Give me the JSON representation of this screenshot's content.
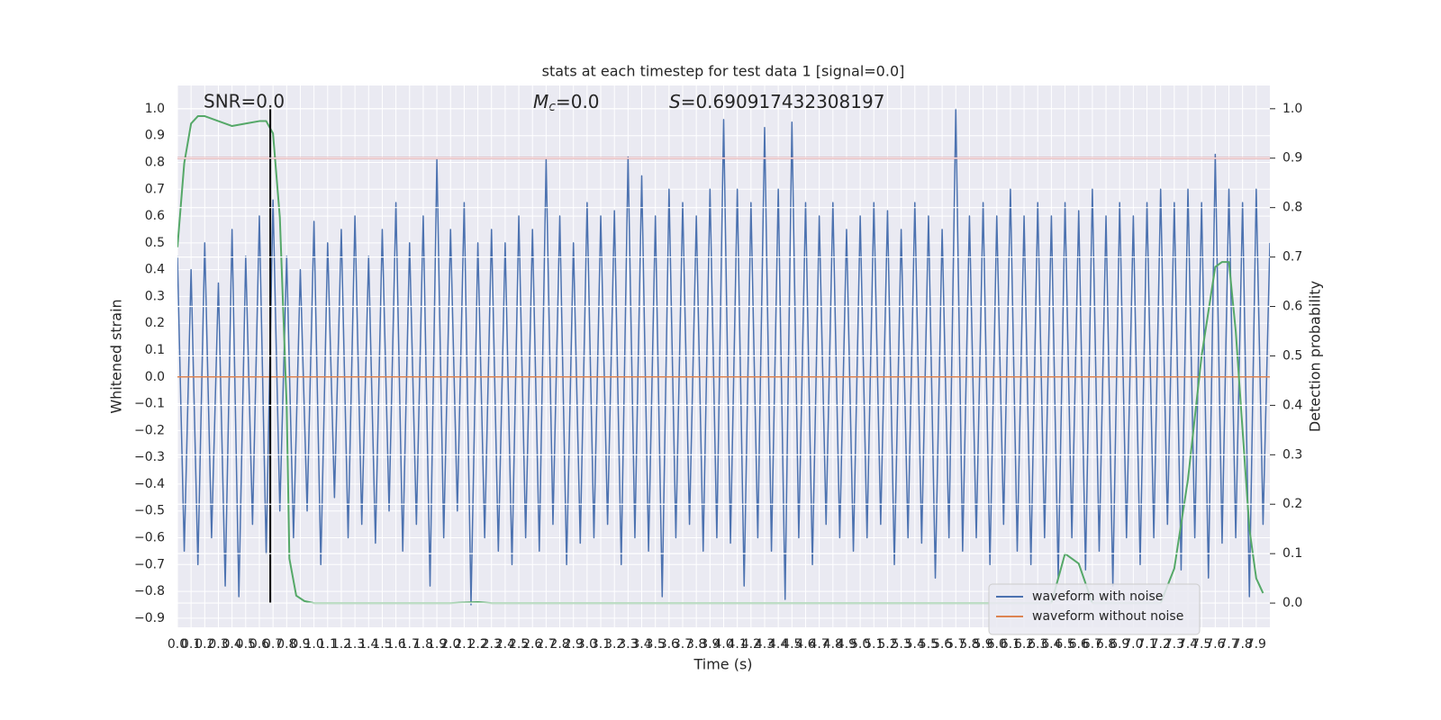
{
  "chart_data": {
    "type": "line",
    "title": "stats at each timestep for test data 1 [signal=0.0]",
    "xlabel": "Time (s)",
    "ylabel": "Whitened strain",
    "y2label": "Detection probability",
    "annotations": [
      {
        "text": "SNR=0.0"
      },
      {
        "symbol": "M",
        "subscript": "c",
        "text": "=0.0"
      },
      {
        "symbol": "S",
        "text": "=0.690917432308197"
      }
    ],
    "xlim": [
      0,
      8.0
    ],
    "ylim": [
      -0.934,
      1.087
    ],
    "y2lim": [
      -0.049,
      1.047
    ],
    "grid": true,
    "legend": "lower right",
    "xticks": [
      {
        "value": 0,
        "label": "0.0"
      },
      0.1,
      0.2,
      0.3,
      0.4,
      0.5,
      0.6,
      0.7,
      0.8,
      0.9,
      {
        "value": 1,
        "label": "1.0"
      },
      1.1,
      1.2,
      1.3,
      1.4,
      1.5,
      1.6,
      1.7,
      1.8,
      1.9,
      {
        "value": 2,
        "label": "2.0"
      },
      2.1,
      2.2,
      2.3,
      2.4,
      2.5,
      2.6,
      2.7,
      2.8,
      2.9,
      {
        "value": 3,
        "label": "3.0"
      },
      3.1,
      3.2,
      3.3,
      3.4,
      3.5,
      3.6,
      3.7,
      3.8,
      3.9,
      {
        "value": 4,
        "label": "4.0"
      },
      4.1,
      4.2,
      4.3,
      4.4,
      4.5,
      4.6,
      4.7,
      4.8,
      4.9,
      {
        "value": 5,
        "label": "5.0"
      },
      5.1,
      5.2,
      5.3,
      5.4,
      5.5,
      5.6,
      5.7,
      5.8,
      5.9,
      {
        "value": 6,
        "label": "6.0"
      },
      6.1,
      6.2,
      6.3,
      6.4,
      6.5,
      6.6,
      6.7,
      6.8,
      6.9,
      {
        "value": 7,
        "label": "7.0"
      },
      7.1,
      7.2,
      7.3,
      7.4,
      7.5,
      7.6,
      7.7,
      7.8,
      7.9
    ],
    "yticks": [
      {
        "value": -0.9,
        "label": "−0.9"
      },
      {
        "value": -0.8,
        "label": "−0.8"
      },
      {
        "value": -0.7,
        "label": "−0.7"
      },
      {
        "value": -0.6,
        "label": "−0.6"
      },
      {
        "value": -0.5,
        "label": "−0.5"
      },
      {
        "value": -0.4,
        "label": "−0.4"
      },
      {
        "value": -0.3,
        "label": "−0.3"
      },
      {
        "value": -0.2,
        "label": "−0.2"
      },
      {
        "value": -0.1,
        "label": "−0.1"
      },
      {
        "value": 0,
        "label": "0.0"
      },
      0.1,
      0.2,
      0.3,
      0.4,
      0.5,
      0.6,
      0.7,
      0.8,
      0.9,
      {
        "value": 1,
        "label": "1.0"
      }
    ],
    "y2ticks": [
      {
        "value": 0,
        "label": "0.0"
      },
      0.1,
      0.2,
      0.3,
      0.4,
      0.5,
      0.6,
      0.7,
      0.8,
      0.9,
      {
        "value": 1,
        "label": "1.0"
      }
    ],
    "hline": {
      "y2": 0.9,
      "color": "#c44e52"
    },
    "vline": {
      "x": 0.68,
      "y2": [
        0,
        1
      ],
      "color": "#000000"
    },
    "series": [
      {
        "name": "waveform with noise",
        "color": "#4c72b0",
        "x": [
          0,
          0.05,
          0.1,
          0.15,
          0.2,
          0.25,
          0.3,
          0.35,
          0.4,
          0.45,
          0.5,
          0.55,
          0.6,
          0.65,
          0.7,
          0.75,
          0.8,
          0.85,
          0.9,
          0.95,
          1,
          1.05,
          1.1,
          1.15,
          1.2,
          1.25,
          1.3,
          1.35,
          1.4,
          1.45,
          1.5,
          1.55,
          1.6,
          1.65,
          1.7,
          1.75,
          1.8,
          1.85,
          1.9,
          1.95,
          2,
          2.05,
          2.1,
          2.15,
          2.2,
          2.25,
          2.3,
          2.35,
          2.4,
          2.45,
          2.5,
          2.55,
          2.6,
          2.65,
          2.7,
          2.75,
          2.8,
          2.85,
          2.9,
          2.95,
          3,
          3.05,
          3.1,
          3.15,
          3.2,
          3.25,
          3.3,
          3.35,
          3.4,
          3.45,
          3.5,
          3.55,
          3.6,
          3.65,
          3.7,
          3.75,
          3.8,
          3.85,
          3.9,
          3.95,
          4,
          4.05,
          4.1,
          4.15,
          4.2,
          4.25,
          4.3,
          4.35,
          4.4,
          4.45,
          4.5,
          4.55,
          4.6,
          4.65,
          4.7,
          4.75,
          4.8,
          4.85,
          4.9,
          4.95,
          5,
          5.05,
          5.1,
          5.15,
          5.2,
          5.25,
          5.3,
          5.35,
          5.4,
          5.45,
          5.5,
          5.55,
          5.6,
          5.65,
          5.7,
          5.75,
          5.8,
          5.85,
          5.9,
          5.95,
          6,
          6.05,
          6.1,
          6.15,
          6.2,
          6.25,
          6.3,
          6.35,
          6.4,
          6.45,
          6.5,
          6.55,
          6.6,
          6.65,
          6.7,
          6.75,
          6.8,
          6.85,
          6.9,
          6.95,
          7,
          7.05,
          7.1,
          7.15,
          7.2,
          7.25,
          7.3,
          7.35,
          7.4,
          7.45,
          7.5,
          7.55,
          7.6,
          7.65,
          7.7,
          7.75,
          7.8,
          7.85,
          7.9,
          7.95,
          8
        ],
        "values": [
          0.45,
          -0.65,
          0.4,
          -0.7,
          0.5,
          -0.6,
          0.35,
          -0.78,
          0.55,
          -0.82,
          0.45,
          -0.55,
          0.6,
          -0.66,
          0.66,
          -0.5,
          0.45,
          -0.6,
          0.4,
          -0.5,
          0.58,
          -0.7,
          0.5,
          -0.45,
          0.55,
          -0.6,
          0.6,
          -0.55,
          0.45,
          -0.62,
          0.55,
          -0.5,
          0.65,
          -0.65,
          0.5,
          -0.55,
          0.6,
          -0.78,
          0.81,
          -0.6,
          0.55,
          -0.5,
          0.65,
          -0.85,
          0.5,
          -0.6,
          0.55,
          -0.65,
          0.5,
          -0.7,
          0.6,
          -0.6,
          0.55,
          -0.65,
          0.81,
          -0.55,
          0.6,
          -0.7,
          0.5,
          -0.62,
          0.65,
          -0.6,
          0.6,
          -0.55,
          0.62,
          -0.7,
          0.82,
          -0.6,
          0.75,
          -0.65,
          0.6,
          -0.82,
          0.7,
          -0.6,
          0.65,
          -0.55,
          0.6,
          -0.65,
          0.7,
          -0.6,
          0.96,
          -0.62,
          0.7,
          -0.78,
          0.65,
          -0.6,
          0.93,
          -0.65,
          0.7,
          -0.83,
          0.95,
          -0.6,
          0.65,
          -0.7,
          0.6,
          -0.55,
          0.65,
          -0.6,
          0.55,
          -0.65,
          0.6,
          -0.6,
          0.65,
          -0.55,
          0.62,
          -0.7,
          0.55,
          -0.6,
          0.65,
          -0.62,
          0.6,
          -0.75,
          0.55,
          -0.6,
          1.0,
          -0.65,
          0.6,
          -0.6,
          0.65,
          -0.7,
          0.6,
          -0.55,
          0.7,
          -0.65,
          0.6,
          -0.7,
          0.65,
          -0.6,
          0.6,
          -0.75,
          0.65,
          -0.6,
          0.62,
          -0.72,
          0.7,
          -0.65,
          0.6,
          -0.78,
          0.65,
          -0.6,
          0.6,
          -0.7,
          0.65,
          -0.6,
          0.7,
          -0.55,
          0.65,
          -0.72,
          0.7,
          -0.6,
          0.65,
          -0.75,
          0.83,
          -0.62,
          0.7,
          -0.6,
          0.65,
          -0.82,
          0.7,
          -0.55,
          0.5
        ]
      },
      {
        "name": "waveform without noise",
        "color": "#dd8452",
        "x": [
          0,
          8.0
        ],
        "values": [
          0,
          0
        ]
      },
      {
        "color": "#55a868",
        "axis": "y2",
        "x": [
          0,
          0.05,
          0.1,
          0.15,
          0.2,
          0.3,
          0.4,
          0.5,
          0.6,
          0.65,
          0.7,
          0.75,
          0.8,
          0.82,
          0.87,
          0.93,
          1.0,
          2.0,
          2.2,
          2.3,
          6.3,
          6.4,
          6.5,
          6.6,
          6.7,
          7.2,
          7.3,
          7.4,
          7.5,
          7.6,
          7.65,
          7.7,
          7.75,
          7.8,
          7.85,
          7.9,
          7.95
        ],
        "values": [
          0.72,
          0.89,
          0.97,
          0.985,
          0.985,
          0.975,
          0.965,
          0.97,
          0.975,
          0.975,
          0.95,
          0.78,
          0.4,
          0.09,
          0.015,
          0.004,
          0.0,
          0.0,
          0.002,
          0.0,
          0.0,
          0.0,
          0.1,
          0.08,
          0.0,
          0.0,
          0.07,
          0.25,
          0.5,
          0.68,
          0.69,
          0.69,
          0.55,
          0.35,
          0.15,
          0.05,
          0.02
        ]
      }
    ]
  }
}
